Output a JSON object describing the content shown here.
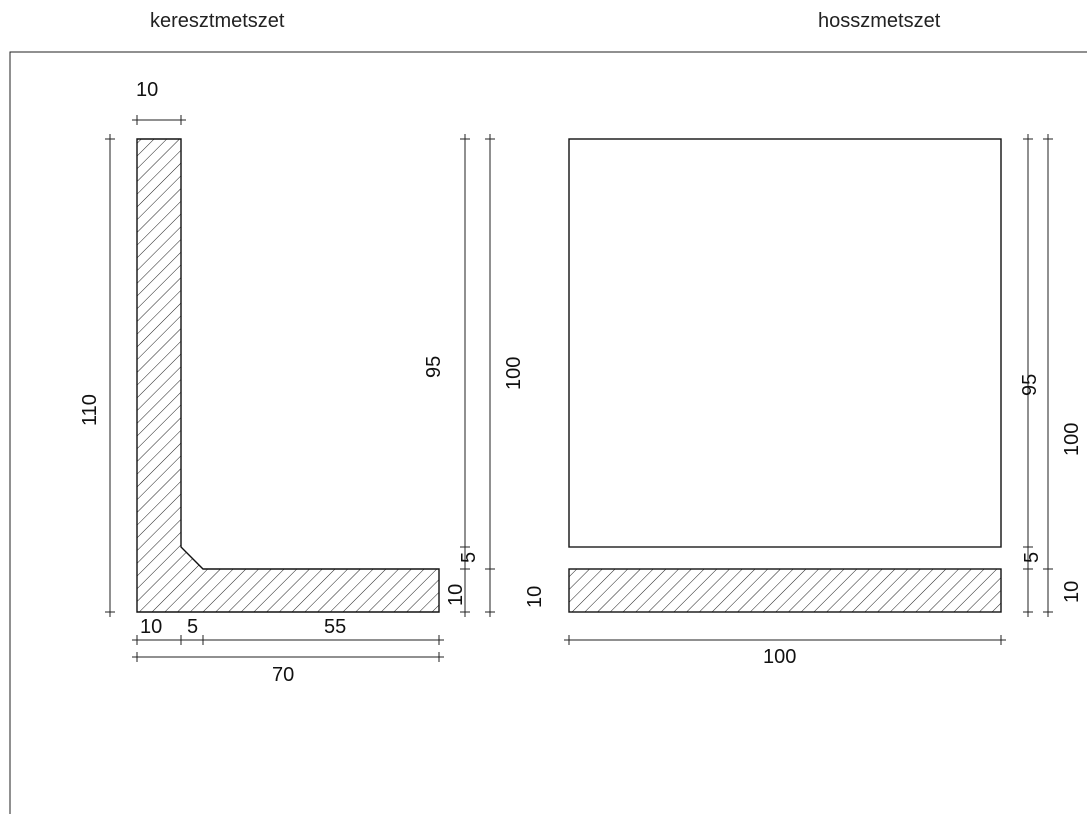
{
  "titles": {
    "cross_section": "keresztmetszet",
    "longitudinal_section": "hosszmetszet"
  },
  "cross_section_dims": {
    "top_width": "10",
    "total_height": "110",
    "bottom_10": "10",
    "bottom_5": "5",
    "bottom_55": "55",
    "total_width": "70",
    "right_95": "95",
    "right_5": "5",
    "right_10": "10",
    "right_100": "100"
  },
  "long_section_dims": {
    "left_10": "10",
    "right_95": "95",
    "right_5": "5",
    "right_100": "100",
    "right_10": "10",
    "bottom_100": "100"
  }
}
